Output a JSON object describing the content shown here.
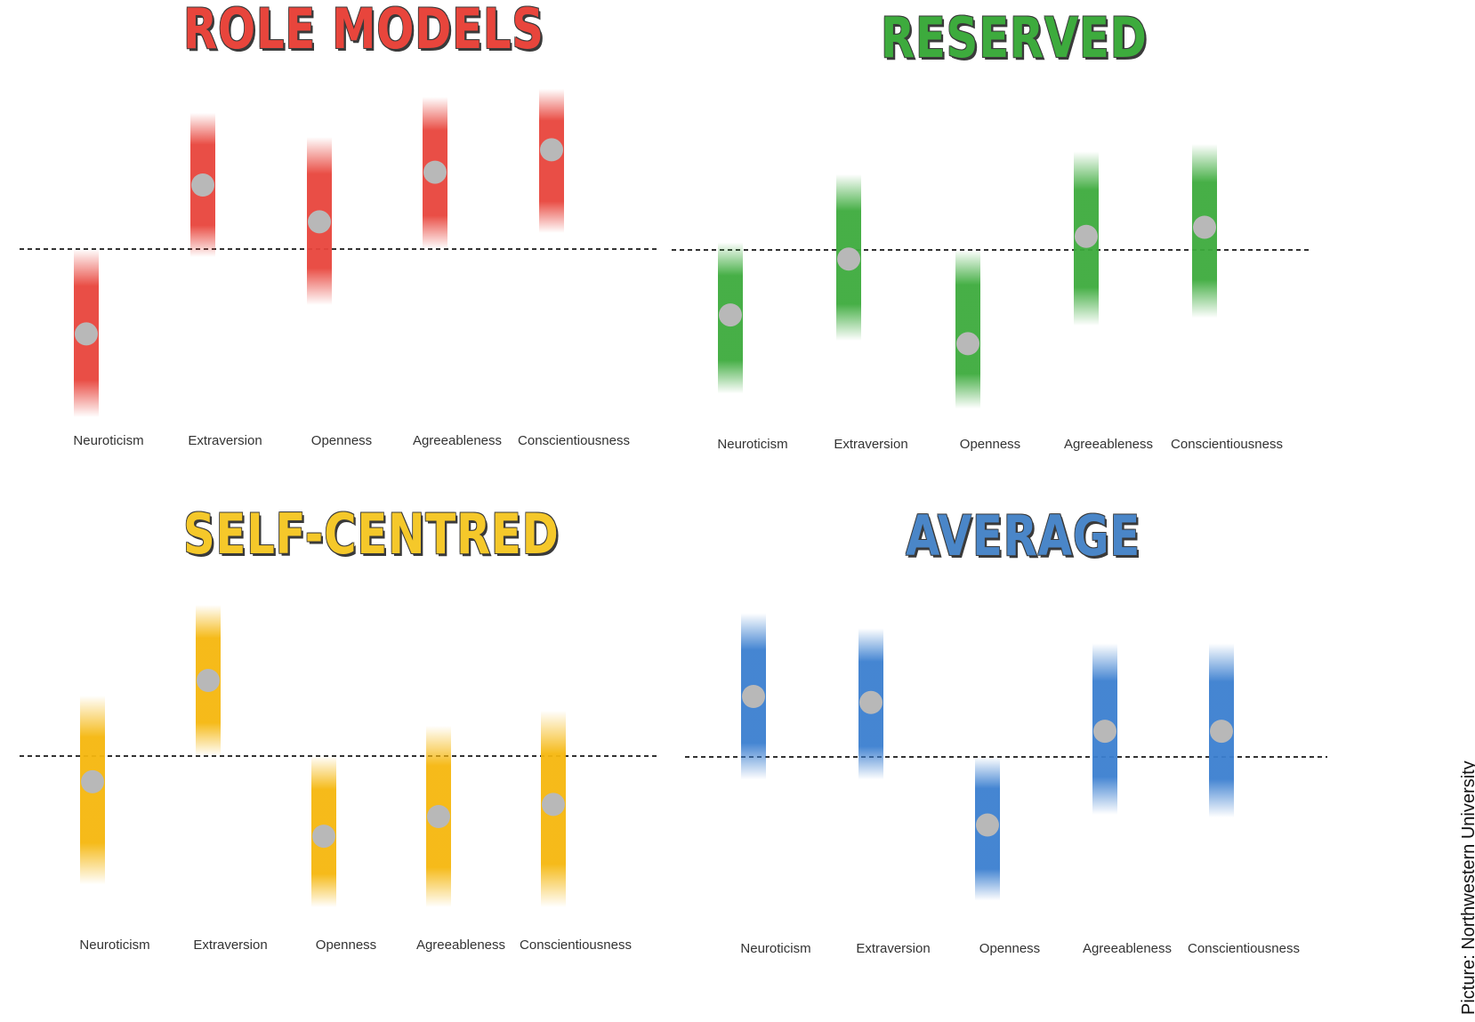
{
  "credit": "Picture: Northwestern University",
  "chart_data": [
    {
      "type": "scatter",
      "title": "ROLE MODELS",
      "color": "#e8453c",
      "categories": [
        "Neuroticism",
        "Extraversion",
        "Openness",
        "Agreeableness",
        "Conscientiousness"
      ],
      "values": [
        -0.53,
        0.4,
        0.17,
        0.48,
        0.62
      ],
      "ranges": [
        [
          -1.05,
          0.0
        ],
        [
          -0.05,
          0.85
        ],
        [
          -0.35,
          0.7
        ],
        [
          0.0,
          0.95
        ],
        [
          0.1,
          1.0
        ]
      ],
      "reference_line": 0
    },
    {
      "type": "scatter",
      "title": "RESERVED",
      "color": "#3dab3d",
      "categories": [
        "Neuroticism",
        "Extraversion",
        "Openness",
        "Agreeableness",
        "Conscientiousness"
      ],
      "values": [
        -0.43,
        -0.06,
        -0.62,
        0.09,
        0.15
      ],
      "ranges": [
        [
          -0.95,
          0.05
        ],
        [
          -0.6,
          0.5
        ],
        [
          -1.05,
          0.0
        ],
        [
          -0.5,
          0.65
        ],
        [
          -0.45,
          0.7
        ]
      ],
      "reference_line": 0
    },
    {
      "type": "scatter",
      "title": "SELF-CENTRED",
      "color": "#f5b70e",
      "categories": [
        "Neuroticism",
        "Extraversion",
        "Openness",
        "Agreeableness",
        "Conscientiousness"
      ],
      "values": [
        -0.17,
        0.5,
        -0.53,
        -0.4,
        -0.32
      ],
      "ranges": [
        [
          -0.85,
          0.4
        ],
        [
          0.0,
          1.0
        ],
        [
          -1.0,
          0.0
        ],
        [
          -1.0,
          0.2
        ],
        [
          -1.0,
          0.3
        ]
      ],
      "reference_line": 0
    },
    {
      "type": "scatter",
      "title": "AVERAGE",
      "color": "#3b7fd0",
      "categories": [
        "Neuroticism",
        "Extraversion",
        "Openness",
        "Agreeableness",
        "Conscientiousness"
      ],
      "values": [
        0.4,
        0.36,
        -0.45,
        0.17,
        0.17
      ],
      "ranges": [
        [
          -0.15,
          0.95
        ],
        [
          -0.15,
          0.85
        ],
        [
          -0.95,
          0.0
        ],
        [
          -0.38,
          0.75
        ],
        [
          -0.4,
          0.75
        ]
      ],
      "reference_line": 0
    }
  ]
}
